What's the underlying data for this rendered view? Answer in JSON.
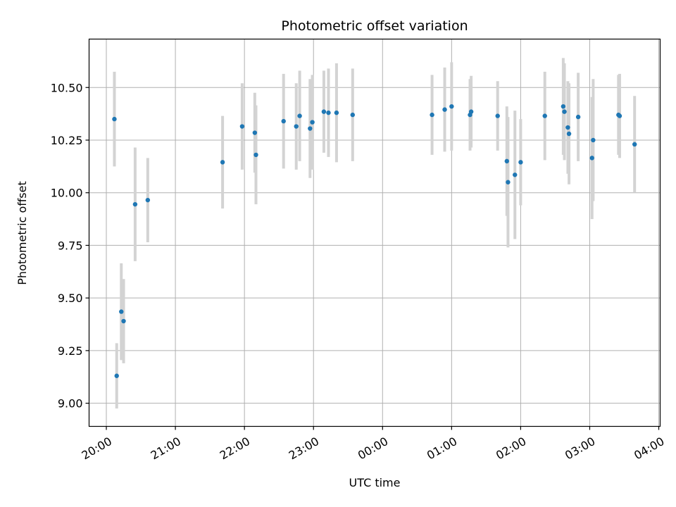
{
  "chart_data": {
    "type": "scatter",
    "title": "Photometric offset variation",
    "xlabel": "UTC time",
    "ylabel": "Photometric offset",
    "x_ticks": [
      "20:00",
      "21:00",
      "22:00",
      "23:00",
      "00:00",
      "01:00",
      "02:00",
      "03:00",
      "04:00"
    ],
    "y_ticks": [
      "9.00",
      "9.25",
      "9.50",
      "9.75",
      "10.00",
      "10.25",
      "10.50"
    ],
    "xlim_hours": [
      19.75,
      28.02
    ],
    "ylim": [
      8.89,
      10.73
    ],
    "grid": true,
    "colors": {
      "point": "#1f77b4",
      "errorbar": "#d3d3d3",
      "grid": "#b0b0b0"
    },
    "series": [
      {
        "points": [
          {
            "t": "20:07",
            "y": 10.35,
            "err": 0.225
          },
          {
            "t": "20:09",
            "y": 9.13,
            "err": 0.155
          },
          {
            "t": "20:13",
            "y": 9.435,
            "err": 0.23
          },
          {
            "t": "20:15",
            "y": 9.39,
            "err": 0.2
          },
          {
            "t": "20:25",
            "y": 9.945,
            "err": 0.27
          },
          {
            "t": "20:36",
            "y": 9.965,
            "err": 0.2
          },
          {
            "t": "21:41",
            "y": 10.145,
            "err": 0.22
          },
          {
            "t": "21:58",
            "y": 10.315,
            "err": 0.205
          },
          {
            "t": "22:09",
            "y": 10.285,
            "err": 0.19
          },
          {
            "t": "22:10",
            "y": 10.18,
            "err": 0.235
          },
          {
            "t": "22:34",
            "y": 10.34,
            "err": 0.225
          },
          {
            "t": "22:45",
            "y": 10.315,
            "err": 0.205
          },
          {
            "t": "22:48",
            "y": 10.365,
            "err": 0.215
          },
          {
            "t": "22:57",
            "y": 10.305,
            "err": 0.235
          },
          {
            "t": "22:59",
            "y": 10.335,
            "err": 0.225
          },
          {
            "t": "23:09",
            "y": 10.385,
            "err": 0.195
          },
          {
            "t": "23:13",
            "y": 10.38,
            "err": 0.21
          },
          {
            "t": "23:20",
            "y": 10.38,
            "err": 0.235
          },
          {
            "t": "23:34",
            "y": 10.37,
            "err": 0.22
          },
          {
            "t": "00:43",
            "y": 10.37,
            "err": 0.19
          },
          {
            "t": "00:54",
            "y": 10.395,
            "err": 0.2
          },
          {
            "t": "01:00",
            "y": 10.41,
            "err": 0.21
          },
          {
            "t": "01:16",
            "y": 10.37,
            "err": 0.17
          },
          {
            "t": "01:17",
            "y": 10.385,
            "err": 0.17
          },
          {
            "t": "01:40",
            "y": 10.365,
            "err": 0.165
          },
          {
            "t": "01:48",
            "y": 10.15,
            "err": 0.26
          },
          {
            "t": "01:49",
            "y": 10.05,
            "err": 0.31
          },
          {
            "t": "01:55",
            "y": 10.085,
            "err": 0.305
          },
          {
            "t": "02:00",
            "y": 10.145,
            "err": 0.205
          },
          {
            "t": "02:21",
            "y": 10.365,
            "err": 0.21
          },
          {
            "t": "02:37",
            "y": 10.41,
            "err": 0.23
          },
          {
            "t": "02:38",
            "y": 10.385,
            "err": 0.23
          },
          {
            "t": "02:41",
            "y": 10.31,
            "err": 0.22
          },
          {
            "t": "02:42",
            "y": 10.28,
            "err": 0.24
          },
          {
            "t": "02:50",
            "y": 10.36,
            "err": 0.21
          },
          {
            "t": "03:02",
            "y": 10.165,
            "err": 0.29
          },
          {
            "t": "03:03",
            "y": 10.25,
            "err": 0.29
          },
          {
            "t": "03:25",
            "y": 10.37,
            "err": 0.19
          },
          {
            "t": "03:26",
            "y": 10.365,
            "err": 0.2
          },
          {
            "t": "03:39",
            "y": 10.23,
            "err": 0.23
          }
        ]
      }
    ]
  }
}
